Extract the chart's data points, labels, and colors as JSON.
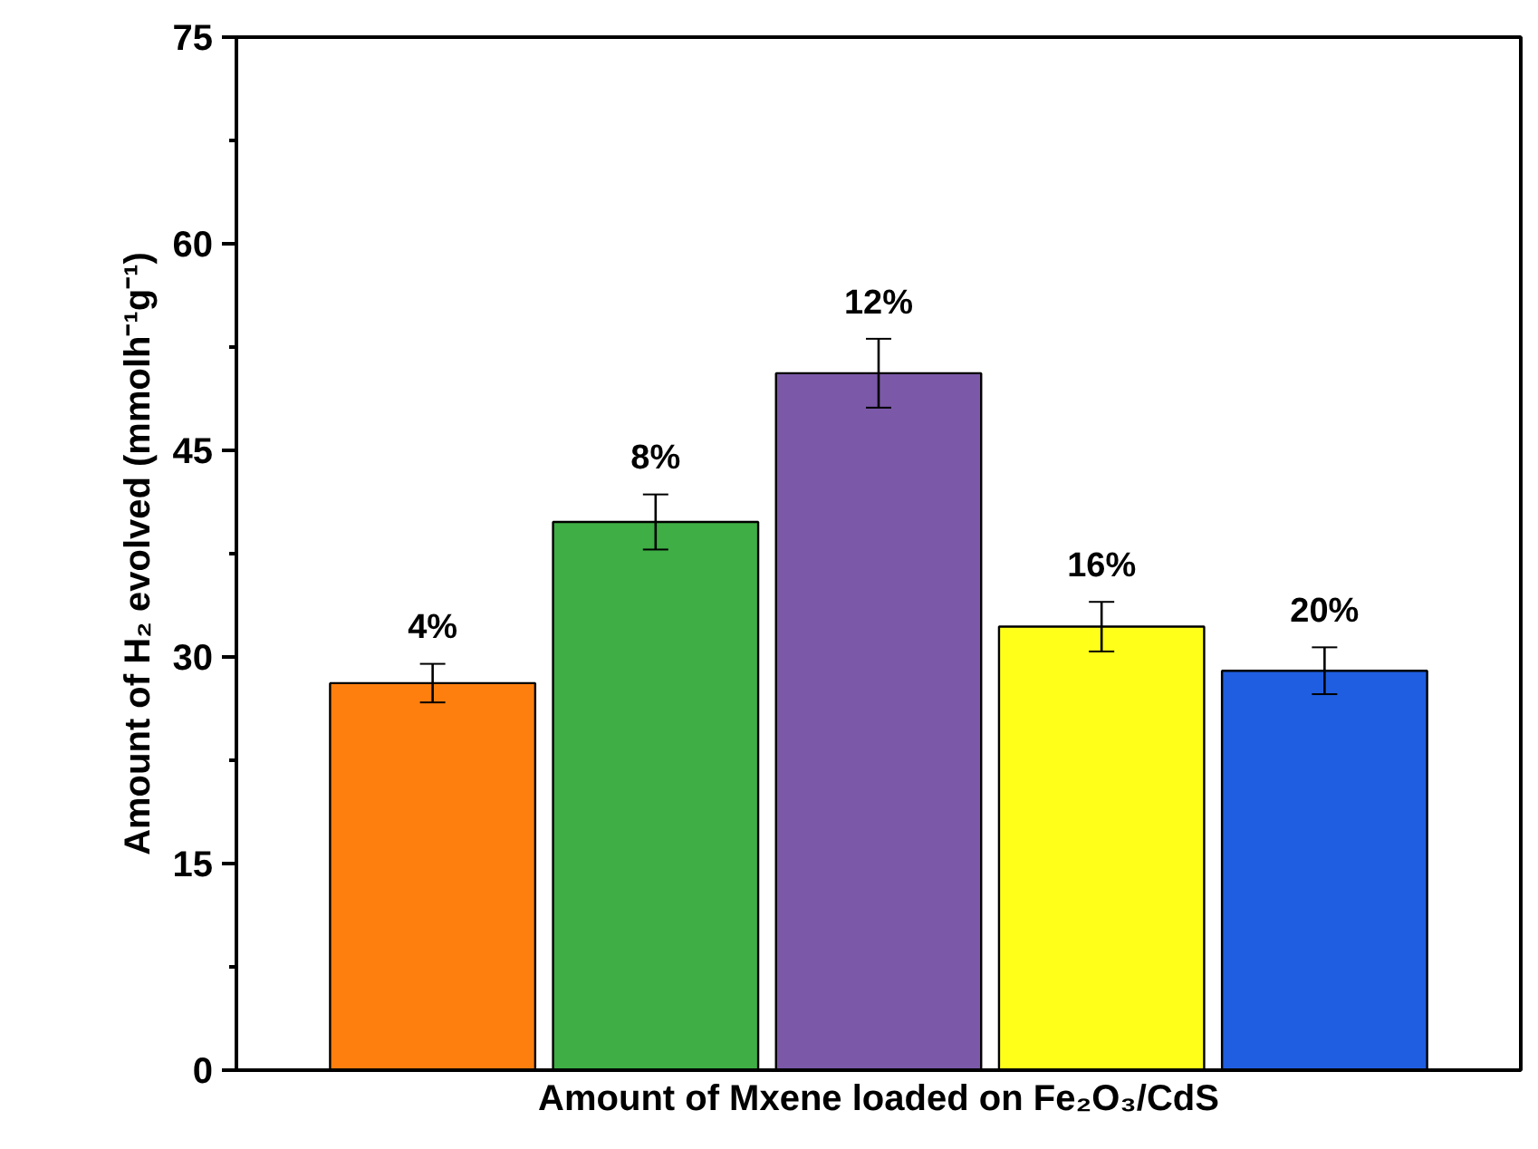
{
  "chart_data": {
    "type": "bar",
    "xlabel": "Amount of Mxene loaded on Fe₂O₃/CdS",
    "ylabel": "Amount of H₂ evolved (mmolh⁻¹g⁻¹)",
    "categories": [
      "4%",
      "8%",
      "12%",
      "16%",
      "20%"
    ],
    "values": [
      28.1,
      39.8,
      50.6,
      32.2,
      29.0
    ],
    "errors": [
      1.4,
      2.0,
      2.5,
      1.8,
      1.7
    ],
    "colors": [
      "#ff7f0e",
      "#3eae45",
      "#7b59a8",
      "#ffff1a",
      "#1f5ee0"
    ],
    "ylim": [
      0,
      75
    ],
    "yticks": [
      0,
      {
        "value": 7.5,
        "label": null
      },
      15,
      {
        "value": 22.5,
        "label": null
      },
      30,
      {
        "value": 37.5,
        "label": null
      },
      45,
      {
        "value": 52.5,
        "label": null
      },
      60,
      {
        "value": 67.5,
        "label": null
      },
      75
    ],
    "tick_labels": "y",
    "grid": false
  }
}
